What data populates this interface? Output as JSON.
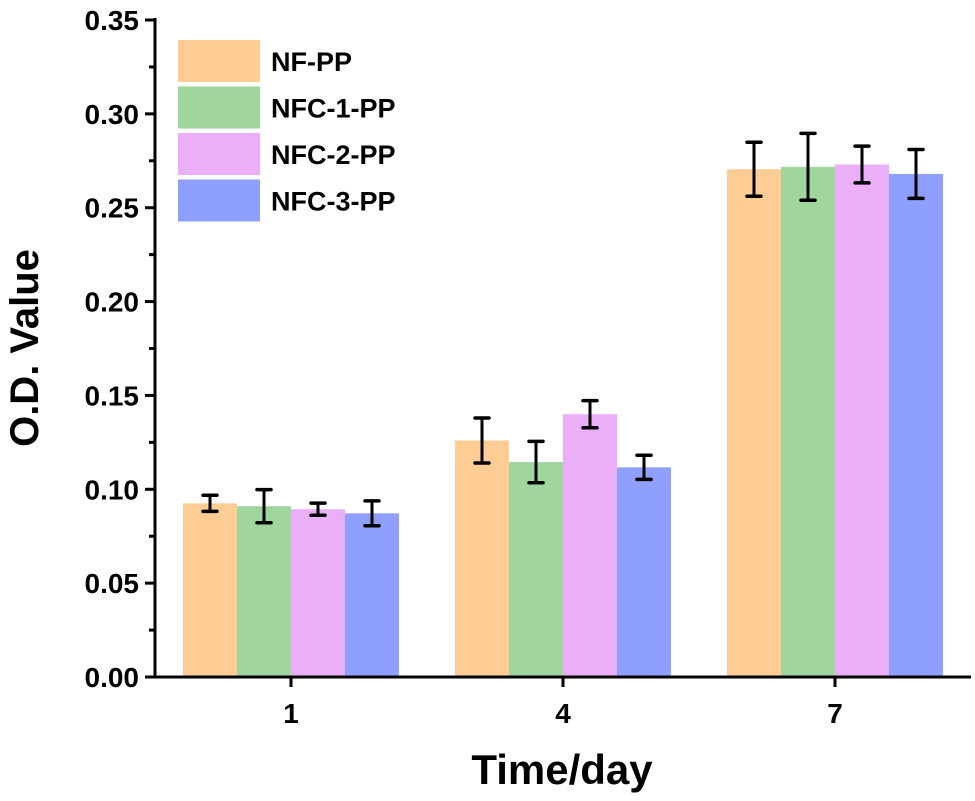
{
  "chart_data": {
    "type": "bar",
    "title": "",
    "xlabel": "Time/day",
    "ylabel": "O.D. Value",
    "categories": [
      "1",
      "4",
      "7"
    ],
    "ylim": [
      0,
      0.35
    ],
    "yticks": [
      "0.00",
      "0.05",
      "0.10",
      "0.15",
      "0.20",
      "0.25",
      "0.30",
      "0.35"
    ],
    "grid": false,
    "legend_position": "top-left",
    "series": [
      {
        "name": "NF-PP",
        "color": "#FFCC94",
        "values": [
          0.0925,
          0.126,
          0.2705
        ],
        "errors": [
          0.0043,
          0.012,
          0.0144
        ]
      },
      {
        "name": "NFC-1-PP",
        "color": "#A0D59D",
        "values": [
          0.091,
          0.1145,
          0.2718
        ],
        "errors": [
          0.0088,
          0.011,
          0.0178
        ]
      },
      {
        "name": "NFC-2-PP",
        "color": "#EBAFFA",
        "values": [
          0.0894,
          0.14,
          0.273
        ],
        "errors": [
          0.0032,
          0.0072,
          0.0098
        ]
      },
      {
        "name": "NFC-3-PP",
        "color": "#8E9FFD",
        "values": [
          0.0872,
          0.1117,
          0.268
        ],
        "errors": [
          0.0066,
          0.0064,
          0.013
        ]
      }
    ]
  }
}
